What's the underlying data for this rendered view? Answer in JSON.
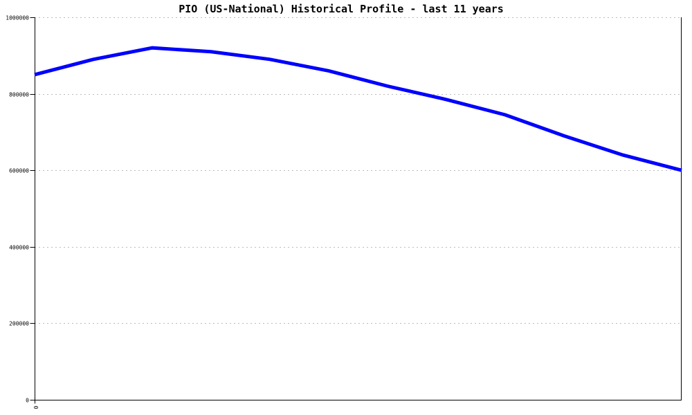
{
  "page": {
    "background": "#ffffff"
  },
  "chart_data": {
    "type": "line",
    "title": "PIO (US-National) Historical Profile - last 11 years",
    "xlabel": "",
    "ylabel": "",
    "ylim": [
      0,
      1000000
    ],
    "yticks": [
      0,
      200000,
      400000,
      600000,
      800000,
      1000000
    ],
    "ytick_labels": [
      "0",
      "200000",
      "400000",
      "600000",
      "800000",
      "1000000"
    ],
    "xtick_labels_visible": [
      "0"
    ],
    "x_tick_label_rotation_deg": 90,
    "grid": {
      "horizontal": true,
      "vertical": false,
      "style": "dashed",
      "color": "#bbbbbb"
    },
    "legend": "none",
    "axis_color": "#000000",
    "plot_border": "left-bottom-right-solid",
    "series": [
      {
        "name": "PIO (US-National)",
        "color": "#0000ff",
        "line_width": 5,
        "x": [
          0,
          1,
          2,
          3,
          4,
          5,
          6,
          7,
          8,
          9,
          10,
          11
        ],
        "values": [
          850000,
          890000,
          920000,
          910000,
          890000,
          860000,
          820000,
          785000,
          745000,
          690000,
          640000,
          600000
        ]
      }
    ]
  }
}
